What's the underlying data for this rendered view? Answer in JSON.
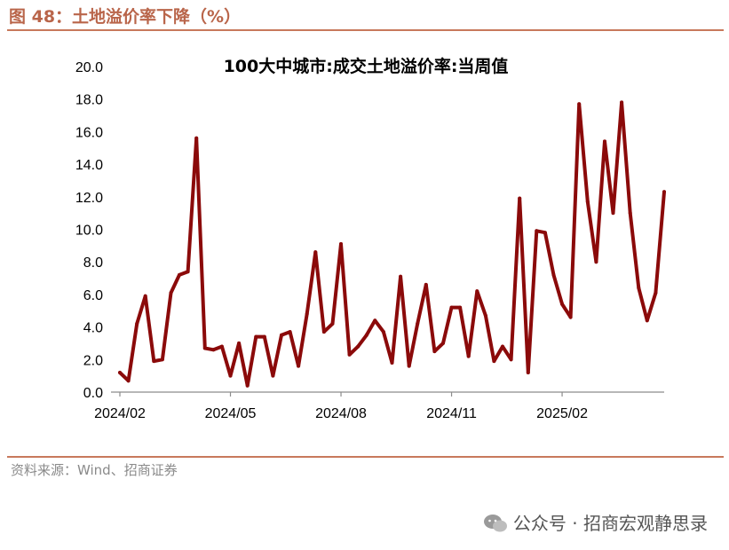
{
  "header": {
    "title": "图 48：土地溢价率下降（%）"
  },
  "footer": {
    "source": "资料来源：Wind、招商证券"
  },
  "watermark": {
    "text": "公众号 · 招商宏观静思录",
    "icon": "wechat-icon"
  },
  "colors": {
    "line": "#8b0a0a",
    "accent": "#c8795c",
    "axis": "#8c8c8c"
  },
  "chart_data": {
    "type": "line",
    "title": "100大中城市:成交土地溢价率:当周值",
    "xlabel": "",
    "ylabel": "",
    "ylim": [
      0,
      20
    ],
    "yticks": [
      "0.0",
      "2.0",
      "4.0",
      "6.0",
      "8.0",
      "10.0",
      "12.0",
      "14.0",
      "16.0",
      "18.0",
      "20.0"
    ],
    "xticks": [
      {
        "label": "2024/02",
        "index": 0
      },
      {
        "label": "2024/05",
        "index": 13
      },
      {
        "label": "2024/08",
        "index": 26
      },
      {
        "label": "2024/11",
        "index": 39
      },
      {
        "label": "2025/02",
        "index": 52
      }
    ],
    "series": [
      {
        "name": "100大中城市:成交土地溢价率:当周值",
        "values": [
          1.2,
          0.7,
          4.2,
          5.9,
          1.9,
          2.0,
          6.1,
          7.2,
          7.4,
          15.6,
          2.7,
          2.6,
          2.8,
          1.0,
          3.0,
          0.4,
          3.4,
          3.4,
          1.0,
          3.5,
          3.7,
          1.6,
          4.8,
          8.6,
          3.7,
          4.2,
          9.1,
          2.3,
          2.8,
          3.5,
          4.4,
          3.7,
          1.8,
          7.1,
          1.6,
          4.2,
          6.6,
          2.5,
          3.0,
          5.2,
          5.2,
          2.2,
          6.2,
          4.7,
          1.9,
          2.8,
          2.0,
          11.9,
          1.2,
          9.9,
          9.8,
          7.2,
          5.4,
          4.6,
          17.7,
          11.7,
          8.0,
          15.4,
          11.0,
          17.8,
          11.0,
          6.4,
          4.4,
          6.1,
          12.3
        ]
      }
    ]
  }
}
